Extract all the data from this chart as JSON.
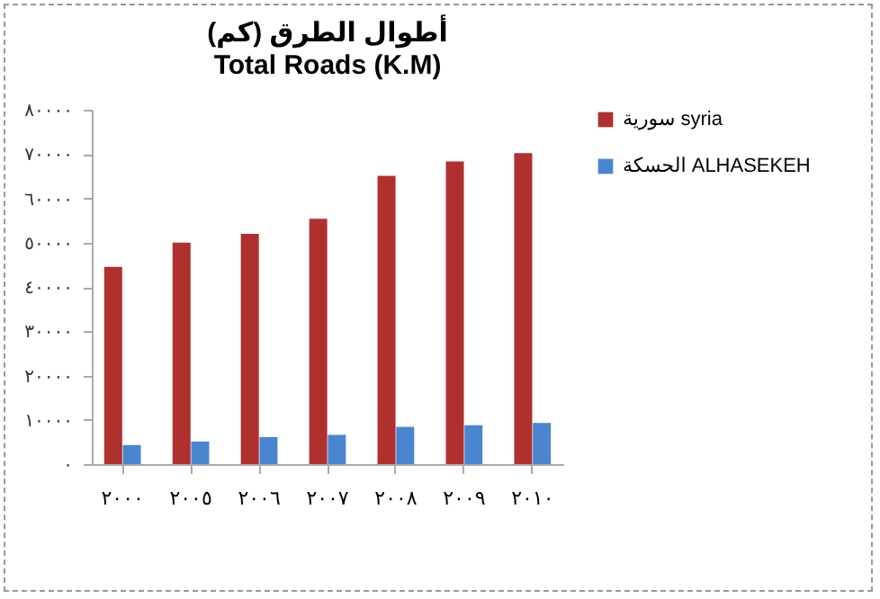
{
  "chart_data": {
    "type": "bar",
    "title": "أطوال الطرق (كم)",
    "subtitle": "Total Roads  (K.M)",
    "categories": [
      "٢٠٠٠",
      "٢٠٠٥",
      "٢٠٠٦",
      "٢٠٠٧",
      "٢٠٠٨",
      "٢٠٠٩",
      "٢٠١٠"
    ],
    "series": [
      {
        "name": "سورية  syria",
        "color": "#b0302e",
        "values": [
          44500,
          50000,
          52000,
          55400,
          65100,
          68300,
          70200
        ]
      },
      {
        "name": "الحسكة ALHASEKEH",
        "color": "#4a86d0",
        "values": [
          4300,
          5100,
          6100,
          6600,
          8400,
          8800,
          9300
        ]
      }
    ],
    "ylim": [
      0,
      80000
    ],
    "yticks": [
      {
        "value": 0,
        "label": "٠"
      },
      {
        "value": 10000,
        "label": "١٠٠٠٠"
      },
      {
        "value": 20000,
        "label": "٢٠٠٠٠"
      },
      {
        "value": 30000,
        "label": "٣٠٠٠٠"
      },
      {
        "value": 40000,
        "label": "٤٠٠٠٠"
      },
      {
        "value": 50000,
        "label": "٥٠٠٠٠"
      },
      {
        "value": 60000,
        "label": "٦٠٠٠٠"
      },
      {
        "value": 70000,
        "label": "٧٠٠٠٠"
      },
      {
        "value": 80000,
        "label": "٨٠٠٠٠"
      }
    ],
    "grid": false,
    "legend": "right"
  }
}
